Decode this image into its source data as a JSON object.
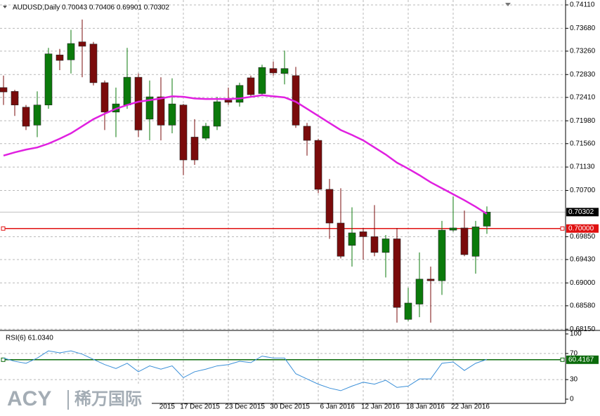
{
  "chart_data": [
    {
      "type": "candlestick",
      "title": "AUDUSD,Daily 0.70043 0.70406 0.69901 0.70302",
      "categories": [
        null,
        null,
        null,
        null,
        null,
        null,
        null,
        null,
        null,
        null,
        null,
        null,
        "2015",
        null,
        null,
        null,
        "17 Dec 2015",
        null,
        null,
        null,
        "23 Dec 2015",
        null,
        null,
        null,
        "30 Dec 2015",
        null,
        null,
        null,
        "6 Jan 2016",
        null,
        null,
        null,
        "12 Jan 2016",
        null,
        null,
        null,
        "18 Jan 2016",
        null,
        null,
        null,
        "22 Jan 2016",
        null,
        null,
        null
      ],
      "open": [
        0.7259,
        0.7252,
        0.7223,
        0.719,
        0.7227,
        0.7319,
        0.731,
        0.7343,
        0.7339,
        0.7268,
        0.7214,
        0.7227,
        0.7278,
        0.7201,
        0.7242,
        0.719,
        0.7227,
        0.7168,
        0.7166,
        0.7188,
        0.7236,
        0.7232,
        0.7277,
        0.7248,
        0.7294,
        0.7285,
        0.7281,
        0.7188,
        0.7162,
        0.7072,
        0.701,
        0.6969,
        0.6994,
        0.6985,
        0.6956,
        0.6981,
        0.6833,
        0.6861,
        0.6907,
        0.6904,
        0.6997,
        0.7001,
        0.6949,
        0.70043
      ],
      "high": [
        0.7281,
        0.7255,
        0.7227,
        0.7252,
        0.7332,
        0.733,
        0.7365,
        0.7384,
        0.7343,
        0.7272,
        0.7259,
        0.7332,
        0.7285,
        0.7272,
        0.7278,
        0.7276,
        0.7229,
        0.7201,
        0.7194,
        0.7242,
        0.7259,
        0.7268,
        0.7281,
        0.7301,
        0.7307,
        0.7327,
        0.7297,
        0.7194,
        0.7165,
        0.7091,
        0.7074,
        0.7039,
        0.7001,
        0.7043,
        0.6988,
        0.7001,
        0.6891,
        0.6956,
        0.693,
        0.7014,
        0.7059,
        0.7033,
        0.7014,
        0.70406
      ],
      "low": [
        0.7227,
        0.7207,
        0.7181,
        0.7168,
        0.722,
        0.7291,
        0.7285,
        0.7278,
        0.7263,
        0.7181,
        0.7168,
        0.722,
        0.7168,
        0.7162,
        0.7162,
        0.7175,
        0.7098,
        0.7117,
        0.7162,
        0.7181,
        0.7227,
        0.7224,
        0.7242,
        0.7245,
        0.7281,
        0.7265,
        0.7185,
        0.7134,
        0.7065,
        0.6981,
        0.6945,
        0.693,
        0.6943,
        0.6949,
        0.691,
        0.6827,
        0.683,
        0.6837,
        0.6827,
        0.6878,
        0.6994,
        0.6949,
        0.6917,
        0.69901
      ],
      "close": [
        0.7251,
        0.7227,
        0.7188,
        0.7227,
        0.7321,
        0.7309,
        0.734,
        0.7335,
        0.7268,
        0.7214,
        0.7229,
        0.7278,
        0.7181,
        0.7242,
        0.719,
        0.7229,
        0.7126,
        0.7126,
        0.7188,
        0.7233,
        0.7232,
        0.7263,
        0.7246,
        0.7296,
        0.7286,
        0.7294,
        0.719,
        0.7162,
        0.7072,
        0.701,
        0.6949,
        0.6992,
        0.6985,
        0.6956,
        0.6981,
        0.6855,
        0.6863,
        0.6907,
        0.6904,
        0.6997,
        0.7001,
        0.6952,
        0.7003,
        0.70302
      ],
      "up_color": "#0b7a0b",
      "down_color": "#7a0b0b",
      "ma_values": [
        0.7134,
        0.714,
        0.7145,
        0.7149,
        0.7156,
        0.7165,
        0.7175,
        0.7188,
        0.7201,
        0.7211,
        0.722,
        0.7227,
        0.7233,
        0.7236,
        0.7239,
        0.7243,
        0.7242,
        0.7239,
        0.7238,
        0.7238,
        0.7238,
        0.7239,
        0.7242,
        0.7245,
        0.7243,
        0.7241,
        0.7233,
        0.722,
        0.7207,
        0.7194,
        0.7181,
        0.7172,
        0.7162,
        0.7149,
        0.7136,
        0.7121,
        0.711,
        0.7098,
        0.7085,
        0.7074,
        0.7063,
        0.7052,
        0.704,
        0.7027
      ],
      "ma_color": "#e020e0",
      "ylim": [
        0.6814,
        0.742
      ],
      "yticks": [
        {
          "value": 0.7411,
          "label": "0.74110"
        },
        {
          "value": 0.7368,
          "label": "0.73680"
        },
        {
          "value": 0.7326,
          "label": "0.73260"
        },
        {
          "value": 0.7283,
          "label": "0.72830"
        },
        {
          "value": 0.7241,
          "label": "0.72410"
        },
        {
          "value": 0.7198,
          "label": "0.71980"
        },
        {
          "value": 0.7156,
          "label": "0.71560"
        },
        {
          "value": 0.7113,
          "label": "0.71130"
        },
        {
          "value": 0.707,
          "label": "0.70700"
        },
        {
          "value": 0.6985,
          "label": "0.69850"
        },
        {
          "value": 0.6943,
          "label": "0.69430"
        },
        {
          "value": 0.69,
          "label": "0.69000"
        },
        {
          "value": 0.6858,
          "label": "0.68580"
        },
        {
          "value": 0.6815,
          "label": "0.68150"
        }
      ],
      "grid": true,
      "last_price": 0.70302,
      "level": {
        "value": 0.7,
        "label": "0.70000",
        "color": "#e01010"
      }
    },
    {
      "type": "line",
      "title": "RSI(6) 61.0340",
      "values": [
        63,
        58,
        55,
        63,
        74,
        71,
        74,
        69,
        61,
        53,
        47,
        55,
        42,
        51,
        46,
        51,
        33,
        42,
        46,
        51,
        53,
        58,
        56,
        66,
        63,
        63,
        39,
        31,
        23,
        17,
        13,
        20,
        26,
        23,
        29,
        18,
        20,
        31,
        31,
        55,
        57,
        44,
        55,
        61.034
      ],
      "color": "#3a8fd8",
      "ylim": [
        0,
        100
      ],
      "yticks": [
        100,
        70,
        30,
        0
      ],
      "level": 60.4167,
      "level_color": "#0a6a0a"
    }
  ],
  "watermark": {
    "brand": "ACY",
    "name": "稀万国际"
  }
}
